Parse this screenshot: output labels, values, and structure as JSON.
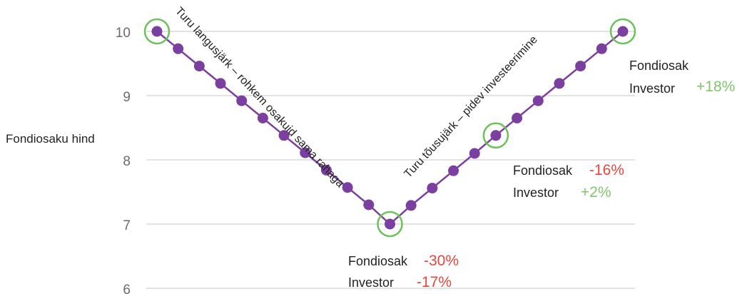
{
  "chart_data": {
    "type": "line",
    "ylabel": "Fondiosaku hind",
    "ylim": [
      6,
      10
    ],
    "yticks": [
      "10",
      "9",
      "8",
      "7",
      "6"
    ],
    "grid": true,
    "series": [
      {
        "values": [
          10.0,
          9.73,
          9.46,
          9.19,
          8.92,
          8.65,
          8.38,
          8.11,
          7.84,
          7.57,
          7.3,
          7.0,
          7.29,
          7.56,
          7.83,
          8.1,
          8.38,
          8.65,
          8.92,
          9.19,
          9.46,
          9.73,
          10.0
        ],
        "color": "#7b3fa0"
      }
    ],
    "highlights": [
      0,
      11,
      16,
      22
    ],
    "highlight_color": "#6cc25a",
    "trend_labels": {
      "down": "Turu langusjärk – rohkem osakuid sama rahaga",
      "up": "Turu tõusujärk – pidev investeerimine"
    },
    "annotations": [
      {
        "fund_label": "Fondiosak",
        "fund_value": "-30%",
        "fund_color": "#e8453c",
        "investor_label": "Investor",
        "investor_value": "-17%",
        "investor_color": "#e8453c"
      },
      {
        "fund_label": "Fondiosak",
        "fund_value": "-16%",
        "fund_color": "#e8453c",
        "investor_label": "Investor",
        "investor_value": "+2%",
        "investor_color": "#7fc66a"
      },
      {
        "fund_label": "Fondiosak",
        "fund_value": "",
        "investor_label": "Investor",
        "investor_value": "+18%",
        "investor_color": "#7fc66a"
      }
    ]
  }
}
